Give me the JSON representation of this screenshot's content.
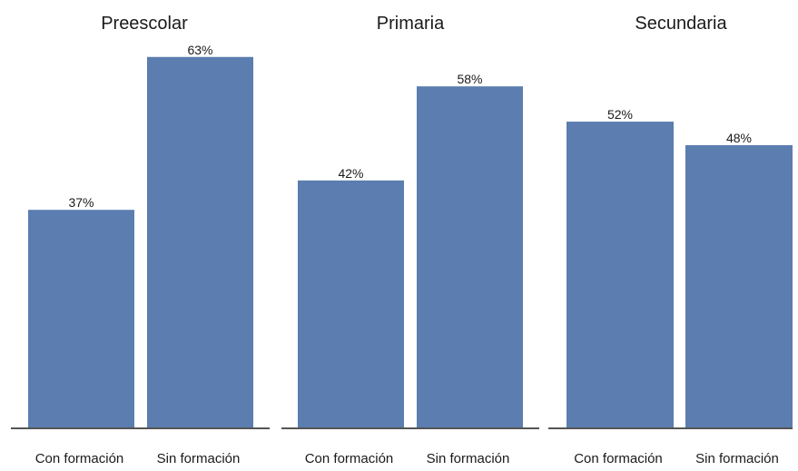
{
  "chart_data": [
    {
      "type": "bar",
      "title": "Preescolar",
      "categories": [
        "Con formación",
        "Sin formación"
      ],
      "values": [
        37,
        63
      ],
      "data_labels": [
        "37%",
        "63%"
      ],
      "ylim": [
        0,
        68
      ],
      "grid": false,
      "bar_color": "#5b7db0"
    },
    {
      "type": "bar",
      "title": "Primaria",
      "categories": [
        "Con formación",
        "Sin formación"
      ],
      "values": [
        42,
        58
      ],
      "data_labels": [
        "42%",
        "58%"
      ],
      "ylim": [
        0,
        68
      ],
      "grid": false,
      "bar_color": "#5b7db0"
    },
    {
      "type": "bar",
      "title": "Secundaria",
      "categories": [
        "Con formación",
        "Sin formación"
      ],
      "values": [
        52,
        48
      ],
      "data_labels": [
        "52%",
        "48%"
      ],
      "ylim": [
        0,
        68
      ],
      "grid": false,
      "bar_color": "#5b7db0"
    }
  ],
  "colors": {
    "bar": "#5b7db0",
    "axis": "#555555",
    "text": "#1a1a1a"
  }
}
